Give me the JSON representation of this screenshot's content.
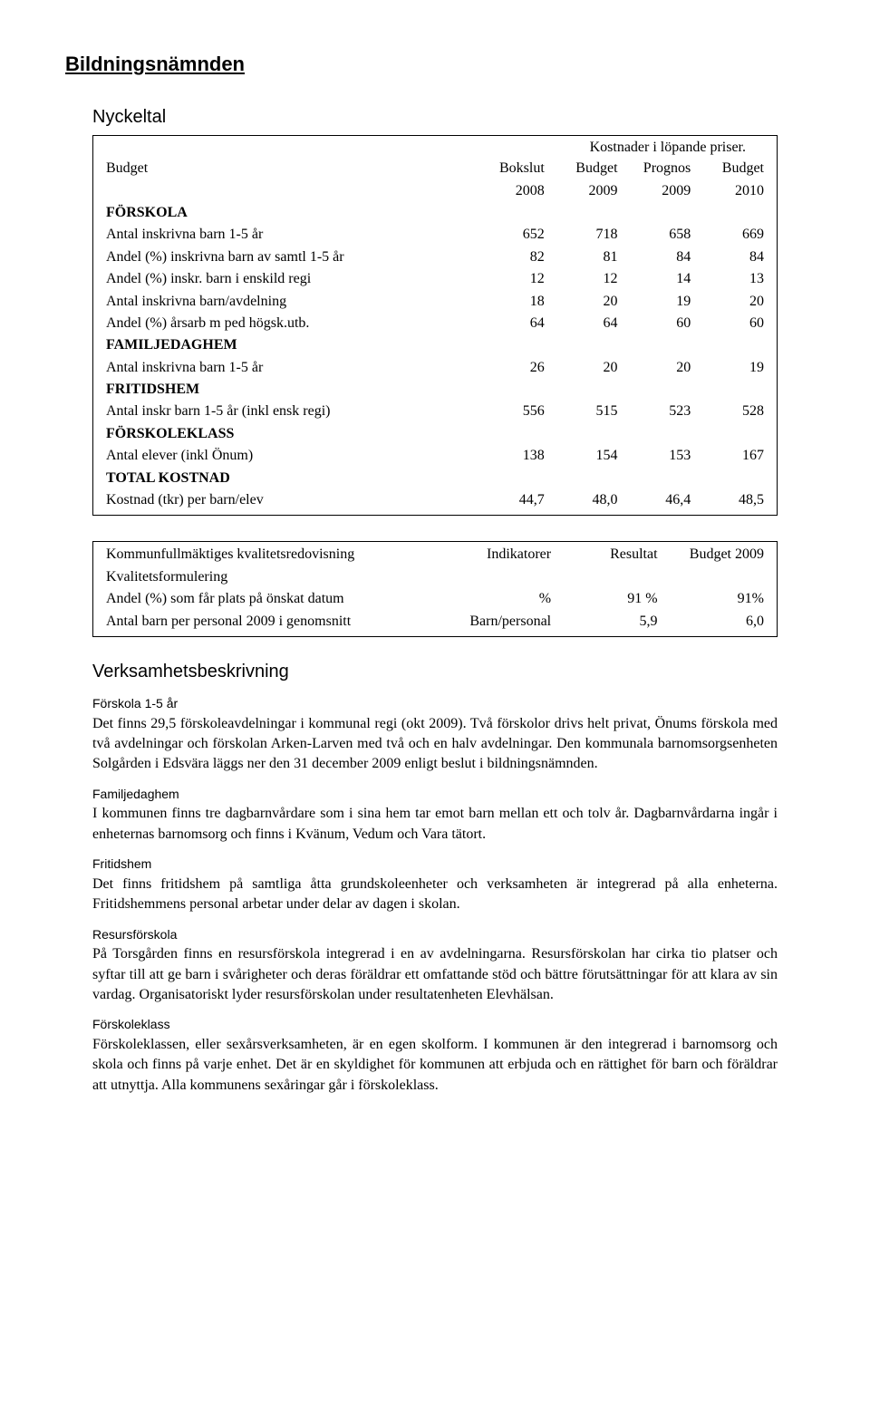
{
  "pageTitle": "Bildningsnämnden",
  "nyckeltal": {
    "heading": "Nyckeltal",
    "caption": "Kostnader i löpande priser.",
    "columns": [
      "Budget",
      "Bokslut",
      "Budget",
      "Prognos",
      "Budget"
    ],
    "years": [
      "",
      "2008",
      "2009",
      "2009",
      "2010"
    ],
    "rows": [
      {
        "label": "FÖRSKOLA",
        "bold": true,
        "v": [
          "",
          "",
          "",
          ""
        ]
      },
      {
        "label": "Antal inskrivna barn 1-5 år",
        "v": [
          "652",
          "718",
          "658",
          "669"
        ]
      },
      {
        "label": "Andel (%) inskrivna barn av samtl 1-5 år",
        "v": [
          "82",
          "81",
          "84",
          "84"
        ]
      },
      {
        "label": "Andel (%) inskr. barn i enskild regi",
        "v": [
          "12",
          "12",
          "14",
          "13"
        ]
      },
      {
        "label": "Antal inskrivna barn/avdelning",
        "v": [
          "18",
          "20",
          "19",
          "20"
        ]
      },
      {
        "label": "Andel (%) årsarb m ped högsk.utb.",
        "v": [
          "64",
          "64",
          "60",
          "60"
        ]
      },
      {
        "label": "FAMILJEDAGHEM",
        "bold": true,
        "v": [
          "",
          "",
          "",
          ""
        ]
      },
      {
        "label": "Antal inskrivna barn 1-5 år",
        "v": [
          "26",
          "20",
          "20",
          "19"
        ]
      },
      {
        "label": "FRITIDSHEM",
        "bold": true,
        "v": [
          "",
          "",
          "",
          ""
        ]
      },
      {
        "label": "Antal inskr barn 1-5 år (inkl ensk regi)",
        "v": [
          "556",
          "515",
          "523",
          "528"
        ]
      },
      {
        "label": "FÖRSKOLEKLASS",
        "bold": true,
        "v": [
          "",
          "",
          "",
          ""
        ]
      },
      {
        "label": "Antal elever (inkl Önum)",
        "v": [
          "138",
          "154",
          "153",
          "167"
        ]
      },
      {
        "label": "TOTAL KOSTNAD",
        "bold": true,
        "v": [
          "",
          "",
          "",
          ""
        ]
      },
      {
        "label": "Kostnad (tkr) per barn/elev",
        "v": [
          "44,7",
          "48,0",
          "46,4",
          "48,5"
        ]
      }
    ]
  },
  "kvred": {
    "header": [
      "Kommunfullmäktiges kvalitetsredovisning",
      "Indikatorer",
      "Resultat",
      "Budget 2009"
    ],
    "sub": "Kvalitetsformulering",
    "rows": [
      {
        "label": "Andel (%) som får plats på önskat datum",
        "ind": "%",
        "res": "91 %",
        "bud": "91%"
      },
      {
        "label": "Antal barn per personal 2009 i genomsnitt",
        "ind": "Barn/personal",
        "res": "5,9",
        "bud": "6,0"
      }
    ]
  },
  "verk": {
    "heading": "Verksamhetsbeskrivning",
    "sections": [
      {
        "title": "Förskola 1-5 år",
        "text": "Det finns 29,5 förskoleavdelningar i kommunal regi (okt 2009). Två förskolor drivs helt privat, Önums förskola med två avdelningar och förskolan Arken-Larven med två och en halv avdelningar. Den kommunala barnomsorgsenheten Solgården i Edsvära läggs ner den 31 december 2009 enligt beslut i bildningsnämnden."
      },
      {
        "title": "Familjedaghem",
        "text": "I kommunen finns tre dagbarnvårdare som i sina hem tar emot barn mellan ett och tolv år. Dagbarnvårdarna ingår i enheternas barnomsorg och finns i Kvänum, Vedum och Vara tätort."
      },
      {
        "title": "Fritidshem",
        "text": "Det finns fritidshem på samtliga åtta grundskoleenheter och verksamheten är integrerad på alla enheterna. Fritidshemmens personal arbetar under delar av dagen i skolan."
      },
      {
        "title": "Resursförskola",
        "text": "På Torsgården finns en resursförskola integrerad i en av avdelningarna. Resursförskolan har cirka tio platser och syftar till att ge barn i svårigheter och deras föräldrar ett omfattande stöd och bättre förutsättningar för att klara av sin vardag. Organisatoriskt lyder resursförskolan under resultatenheten Elevhälsan."
      },
      {
        "title": "Förskoleklass",
        "text": "Förskoleklassen, eller sexårsverksamheten, är en egen skolform. I kommunen är den integrerad i barnomsorg och skola och finns på varje enhet. Det är en skyldighet för kommunen att erbjuda och en rättighet för barn och föräldrar att utnyttja. Alla kommunens sexåringar går i förskoleklass."
      }
    ]
  }
}
